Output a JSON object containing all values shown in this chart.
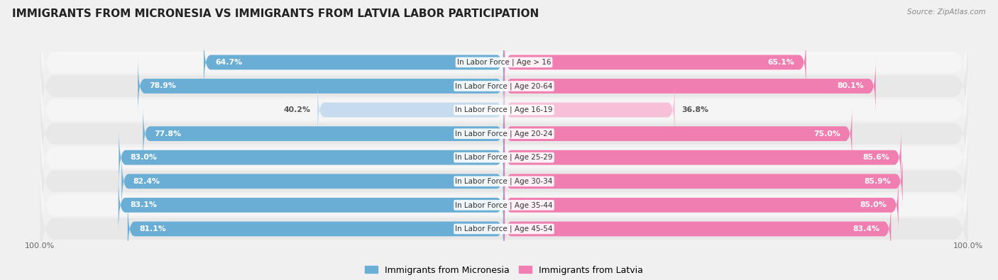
{
  "title": "IMMIGRANTS FROM MICRONESIA VS IMMIGRANTS FROM LATVIA LABOR PARTICIPATION",
  "source": "Source: ZipAtlas.com",
  "categories": [
    "In Labor Force | Age > 16",
    "In Labor Force | Age 20-64",
    "In Labor Force | Age 16-19",
    "In Labor Force | Age 20-24",
    "In Labor Force | Age 25-29",
    "In Labor Force | Age 30-34",
    "In Labor Force | Age 35-44",
    "In Labor Force | Age 45-54"
  ],
  "micronesia_values": [
    64.7,
    78.9,
    40.2,
    77.8,
    83.0,
    82.4,
    83.1,
    81.1
  ],
  "latvia_values": [
    65.1,
    80.1,
    36.8,
    75.0,
    85.6,
    85.9,
    85.0,
    83.4
  ],
  "micronesia_color": "#6aaed6",
  "micronesia_color_light": "#c6dcee",
  "latvia_color": "#f07eb0",
  "latvia_color_light": "#f7c0d8",
  "bar_height": 0.62,
  "bg_color": "#f0f0f0",
  "row_bg_light": "#f5f5f5",
  "row_bg_dark": "#e8e8e8",
  "title_fontsize": 11,
  "label_fontsize": 7.5,
  "value_fontsize": 7.8,
  "legend_fontsize": 9,
  "max_value": 100.0
}
